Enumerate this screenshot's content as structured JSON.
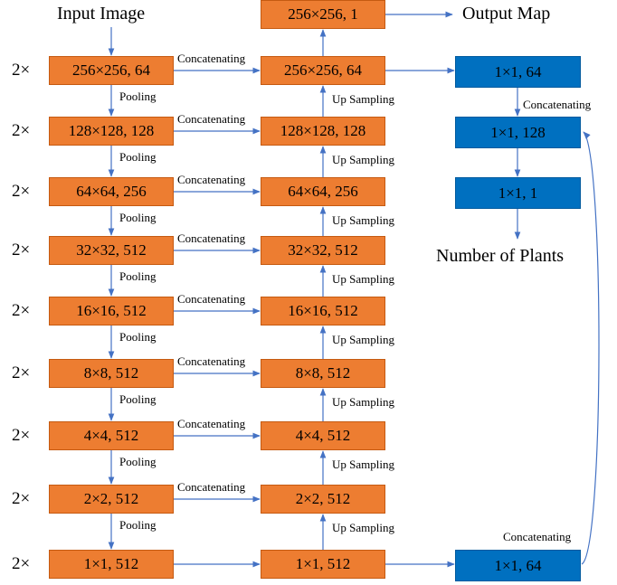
{
  "titles": {
    "input": "Input Image",
    "output": "Output Map",
    "plants": "Number of Plants"
  },
  "repeat_label": "2×",
  "edge_labels": {
    "pooling": "Pooling",
    "up_sampling": "Up Sampling",
    "concatenating": "Concatenating"
  },
  "encoder": [
    "256×256, 64",
    "128×128, 128",
    "64×64, 256",
    "32×32, 512",
    "16×16, 512",
    "8×8, 512",
    "4×4, 512",
    "2×2, 512",
    "1×1, 512"
  ],
  "decoder": [
    "256×256, 64",
    "128×128, 128",
    "64×64, 256",
    "32×32, 512",
    "16×16, 512",
    "8×8, 512",
    "4×4, 512",
    "2×2, 512",
    "1×1, 512"
  ],
  "output_box": "256×256, 1",
  "counter": [
    "1×1, 64",
    "1×1, 128",
    "1×1, 1"
  ],
  "bottom_counter": "1×1, 64",
  "colors": {
    "encoder_box": "#ed7d31",
    "counter_box": "#0070c0",
    "arrow": "#4472c4"
  }
}
